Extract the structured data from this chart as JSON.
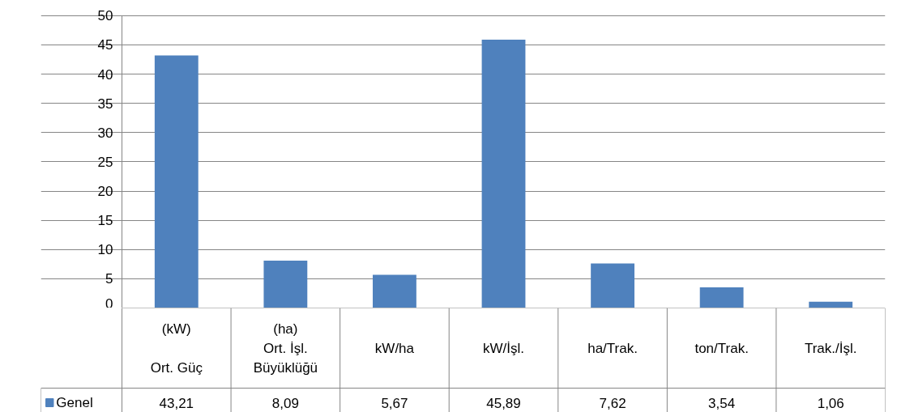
{
  "chart_data": {
    "type": "bar",
    "categories": [
      "(kW)\n\nOrt. Güç",
      "(ha)\nOrt. İşl.\nBüyüklüğü",
      "kW/ha",
      "kW/İşl.",
      "ha/Trak.",
      "ton/Trak.",
      "Trak./İşl."
    ],
    "series": [
      {
        "name": "Genel",
        "color": "#4f81bd",
        "values": [
          43.21,
          8.09,
          5.67,
          45.89,
          7.62,
          3.54,
          1.06
        ],
        "value_labels": [
          "43,21",
          "8,09",
          "5,67",
          "45,89",
          "7,62",
          "3,54",
          "1,06"
        ]
      }
    ],
    "ylim": [
      0,
      50
    ],
    "yticks": [
      0,
      5,
      10,
      15,
      20,
      25,
      30,
      35,
      40,
      45,
      50
    ],
    "grid": "y",
    "legend": "bottom left"
  }
}
